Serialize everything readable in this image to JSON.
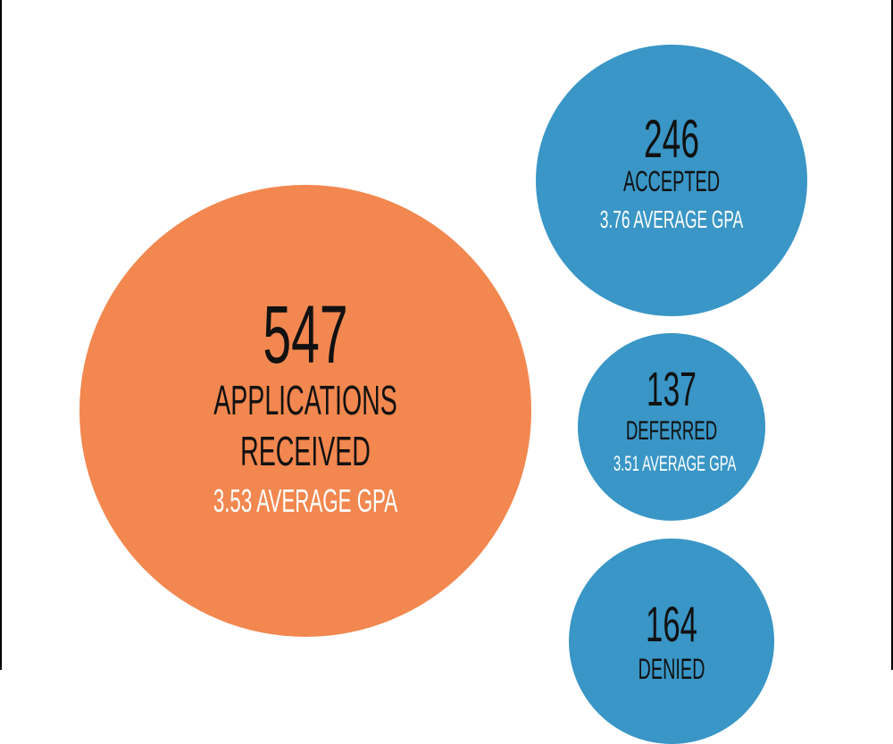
{
  "chart_data": {
    "type": "bubble",
    "title": "",
    "colors": {
      "total": "#f2874f",
      "outcome": "#3996c6"
    },
    "bubbles": [
      {
        "id": "received",
        "count": "547",
        "label_lines": [
          "APPLICATIONS",
          "RECEIVED"
        ],
        "gpa_text": "3.53 AVERAGE GPA",
        "value": 547,
        "avg_gpa": 3.53
      },
      {
        "id": "accepted",
        "count": "246",
        "label_lines": [
          "ACCEPTED"
        ],
        "gpa_text": "3.76 AVERAGE GPA",
        "value": 246,
        "avg_gpa": 3.76
      },
      {
        "id": "deferred",
        "count": "137",
        "label_lines": [
          "DEFERRED"
        ],
        "gpa_text": "3.51 AVERAGE GPA",
        "value": 137,
        "avg_gpa": 3.51
      },
      {
        "id": "denied",
        "count": "164",
        "label_lines": [
          "DENIED"
        ],
        "value": 164
      }
    ]
  }
}
